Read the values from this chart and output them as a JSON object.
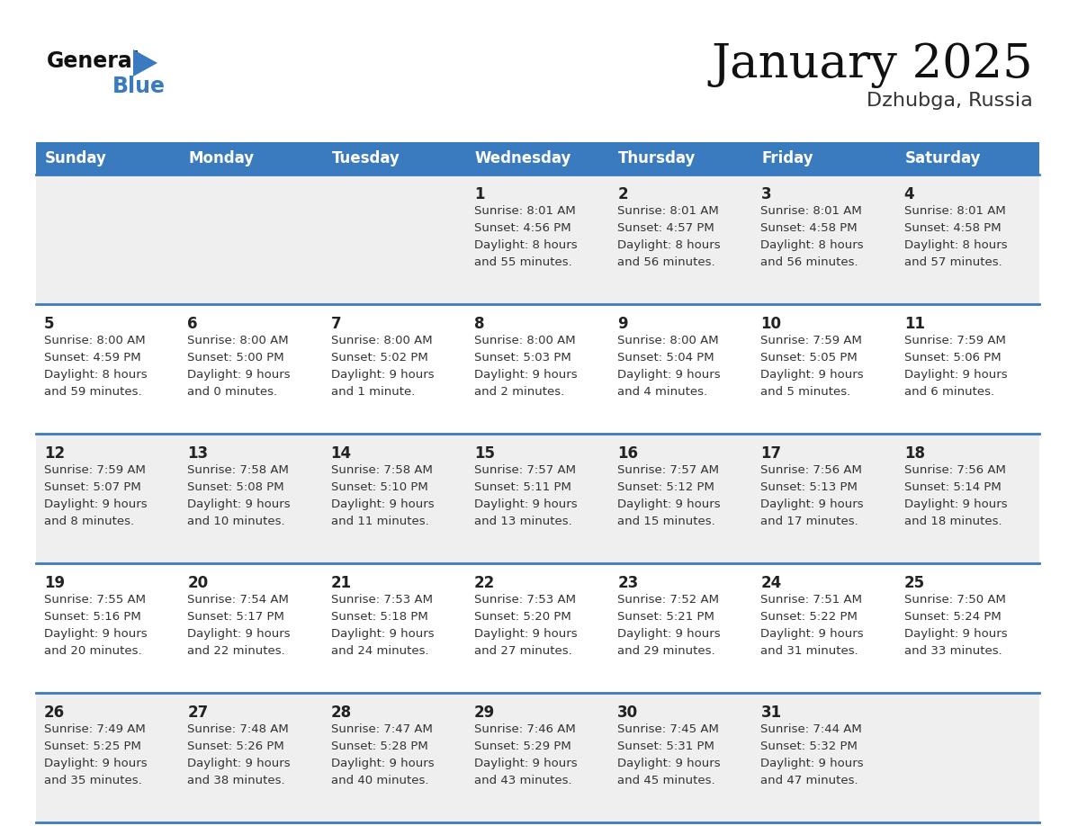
{
  "title": "January 2025",
  "subtitle": "Dzhubga, Russia",
  "header_bg_color": "#3a7abf",
  "header_text_color": "#ffffff",
  "row_bg_grey": "#efefef",
  "row_bg_white": "#ffffff",
  "day_number_color": "#222222",
  "cell_text_color": "#333333",
  "separator_color": "#3a7abf",
  "days_of_week": [
    "Sunday",
    "Monday",
    "Tuesday",
    "Wednesday",
    "Thursday",
    "Friday",
    "Saturday"
  ],
  "weeks": [
    {
      "bg": "grey",
      "days": [
        {
          "day": null,
          "info": null
        },
        {
          "day": null,
          "info": null
        },
        {
          "day": null,
          "info": null
        },
        {
          "day": 1,
          "info": "Sunrise: 8:01 AM\nSunset: 4:56 PM\nDaylight: 8 hours\nand 55 minutes."
        },
        {
          "day": 2,
          "info": "Sunrise: 8:01 AM\nSunset: 4:57 PM\nDaylight: 8 hours\nand 56 minutes."
        },
        {
          "day": 3,
          "info": "Sunrise: 8:01 AM\nSunset: 4:58 PM\nDaylight: 8 hours\nand 56 minutes."
        },
        {
          "day": 4,
          "info": "Sunrise: 8:01 AM\nSunset: 4:58 PM\nDaylight: 8 hours\nand 57 minutes."
        }
      ]
    },
    {
      "bg": "white",
      "days": [
        {
          "day": 5,
          "info": "Sunrise: 8:00 AM\nSunset: 4:59 PM\nDaylight: 8 hours\nand 59 minutes."
        },
        {
          "day": 6,
          "info": "Sunrise: 8:00 AM\nSunset: 5:00 PM\nDaylight: 9 hours\nand 0 minutes."
        },
        {
          "day": 7,
          "info": "Sunrise: 8:00 AM\nSunset: 5:02 PM\nDaylight: 9 hours\nand 1 minute."
        },
        {
          "day": 8,
          "info": "Sunrise: 8:00 AM\nSunset: 5:03 PM\nDaylight: 9 hours\nand 2 minutes."
        },
        {
          "day": 9,
          "info": "Sunrise: 8:00 AM\nSunset: 5:04 PM\nDaylight: 9 hours\nand 4 minutes."
        },
        {
          "day": 10,
          "info": "Sunrise: 7:59 AM\nSunset: 5:05 PM\nDaylight: 9 hours\nand 5 minutes."
        },
        {
          "day": 11,
          "info": "Sunrise: 7:59 AM\nSunset: 5:06 PM\nDaylight: 9 hours\nand 6 minutes."
        }
      ]
    },
    {
      "bg": "grey",
      "days": [
        {
          "day": 12,
          "info": "Sunrise: 7:59 AM\nSunset: 5:07 PM\nDaylight: 9 hours\nand 8 minutes."
        },
        {
          "day": 13,
          "info": "Sunrise: 7:58 AM\nSunset: 5:08 PM\nDaylight: 9 hours\nand 10 minutes."
        },
        {
          "day": 14,
          "info": "Sunrise: 7:58 AM\nSunset: 5:10 PM\nDaylight: 9 hours\nand 11 minutes."
        },
        {
          "day": 15,
          "info": "Sunrise: 7:57 AM\nSunset: 5:11 PM\nDaylight: 9 hours\nand 13 minutes."
        },
        {
          "day": 16,
          "info": "Sunrise: 7:57 AM\nSunset: 5:12 PM\nDaylight: 9 hours\nand 15 minutes."
        },
        {
          "day": 17,
          "info": "Sunrise: 7:56 AM\nSunset: 5:13 PM\nDaylight: 9 hours\nand 17 minutes."
        },
        {
          "day": 18,
          "info": "Sunrise: 7:56 AM\nSunset: 5:14 PM\nDaylight: 9 hours\nand 18 minutes."
        }
      ]
    },
    {
      "bg": "white",
      "days": [
        {
          "day": 19,
          "info": "Sunrise: 7:55 AM\nSunset: 5:16 PM\nDaylight: 9 hours\nand 20 minutes."
        },
        {
          "day": 20,
          "info": "Sunrise: 7:54 AM\nSunset: 5:17 PM\nDaylight: 9 hours\nand 22 minutes."
        },
        {
          "day": 21,
          "info": "Sunrise: 7:53 AM\nSunset: 5:18 PM\nDaylight: 9 hours\nand 24 minutes."
        },
        {
          "day": 22,
          "info": "Sunrise: 7:53 AM\nSunset: 5:20 PM\nDaylight: 9 hours\nand 27 minutes."
        },
        {
          "day": 23,
          "info": "Sunrise: 7:52 AM\nSunset: 5:21 PM\nDaylight: 9 hours\nand 29 minutes."
        },
        {
          "day": 24,
          "info": "Sunrise: 7:51 AM\nSunset: 5:22 PM\nDaylight: 9 hours\nand 31 minutes."
        },
        {
          "day": 25,
          "info": "Sunrise: 7:50 AM\nSunset: 5:24 PM\nDaylight: 9 hours\nand 33 minutes."
        }
      ]
    },
    {
      "bg": "grey",
      "days": [
        {
          "day": 26,
          "info": "Sunrise: 7:49 AM\nSunset: 5:25 PM\nDaylight: 9 hours\nand 35 minutes."
        },
        {
          "day": 27,
          "info": "Sunrise: 7:48 AM\nSunset: 5:26 PM\nDaylight: 9 hours\nand 38 minutes."
        },
        {
          "day": 28,
          "info": "Sunrise: 7:47 AM\nSunset: 5:28 PM\nDaylight: 9 hours\nand 40 minutes."
        },
        {
          "day": 29,
          "info": "Sunrise: 7:46 AM\nSunset: 5:29 PM\nDaylight: 9 hours\nand 43 minutes."
        },
        {
          "day": 30,
          "info": "Sunrise: 7:45 AM\nSunset: 5:31 PM\nDaylight: 9 hours\nand 45 minutes."
        },
        {
          "day": 31,
          "info": "Sunrise: 7:44 AM\nSunset: 5:32 PM\nDaylight: 9 hours\nand 47 minutes."
        },
        {
          "day": null,
          "info": null
        }
      ]
    }
  ]
}
